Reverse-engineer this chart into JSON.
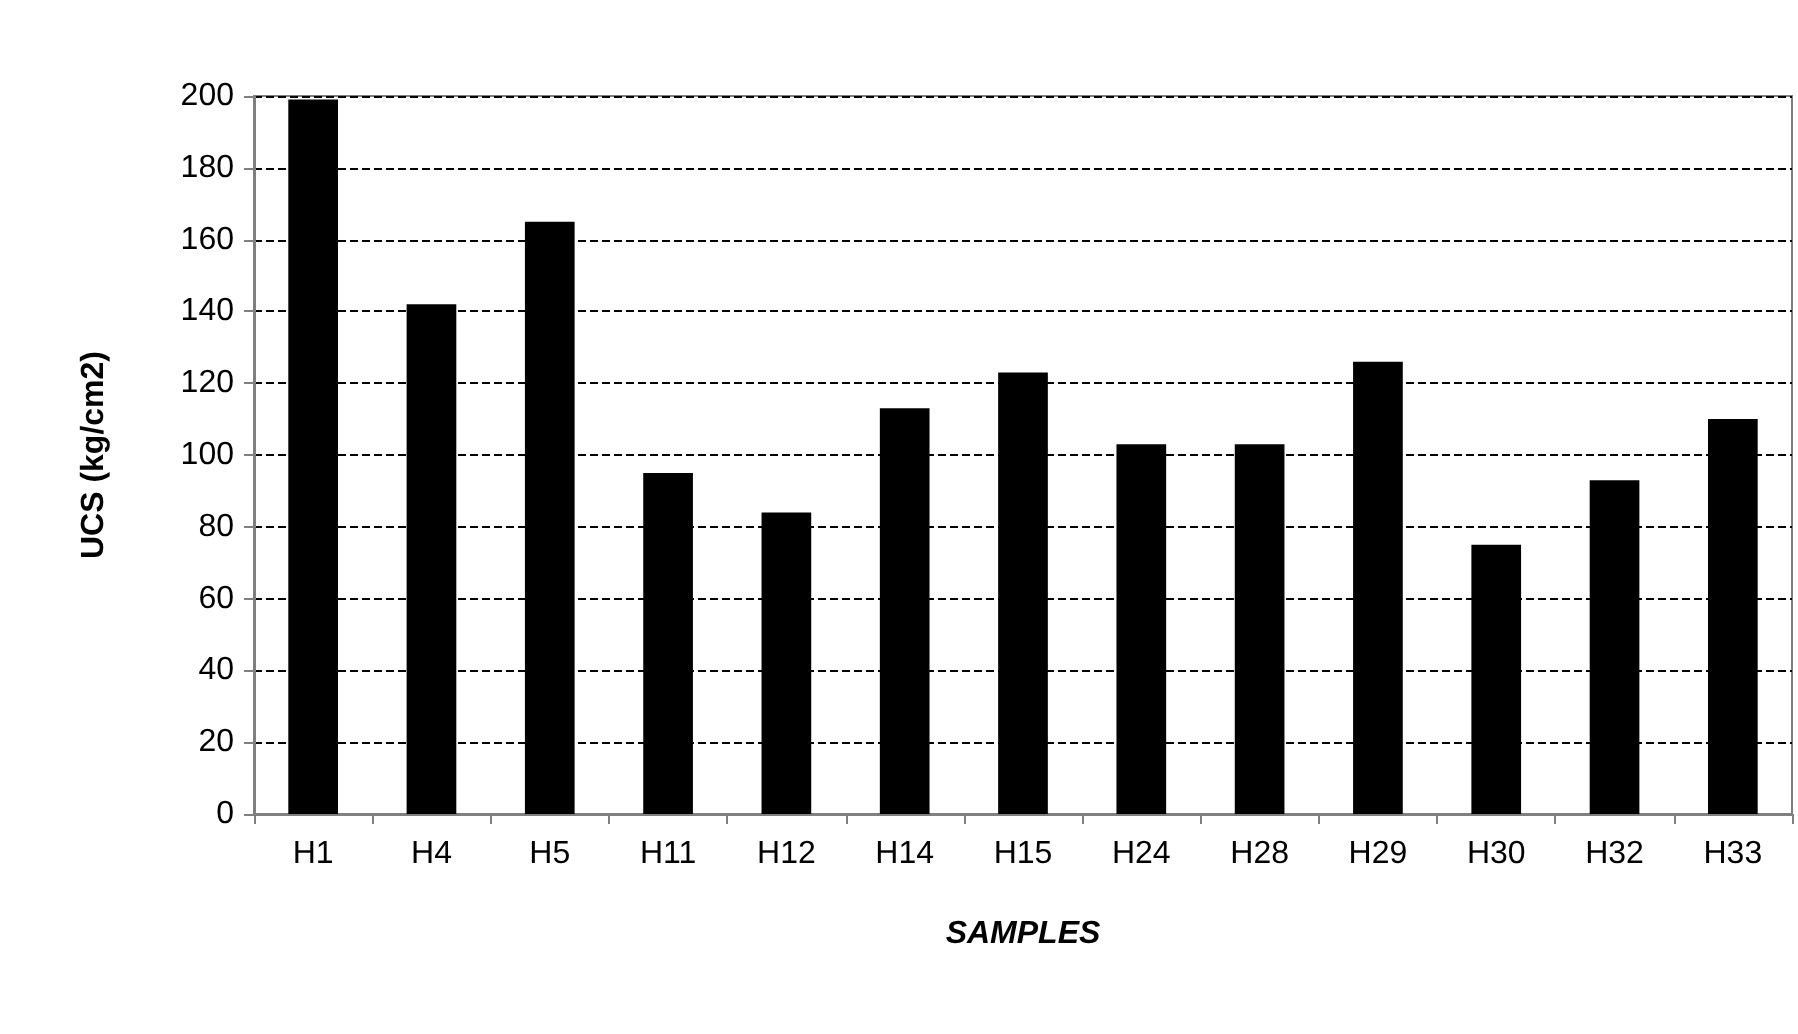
{
  "chart_data": {
    "type": "bar",
    "xlabel": "SAMPLES",
    "ylabel": "UCS (kg/cm2)",
    "categories": [
      "H1",
      "H4",
      "H5",
      "H11",
      "H12",
      "H14",
      "H15",
      "H24",
      "H28",
      "H29",
      "H30",
      "H32",
      "H33"
    ],
    "values": [
      199,
      142,
      165,
      95,
      84,
      113,
      123,
      103,
      103,
      126,
      75,
      93,
      110
    ],
    "color": "#000000",
    "ylim": [
      0,
      200
    ],
    "yticks": [
      0,
      20,
      40,
      60,
      80,
      100,
      120,
      140,
      160,
      180,
      200
    ],
    "grid": "y",
    "line_style": "dashed"
  }
}
